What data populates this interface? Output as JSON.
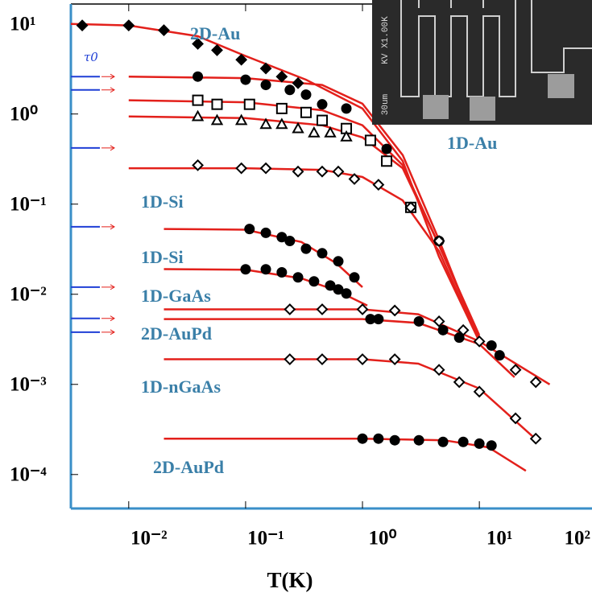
{
  "chart_data": {
    "type": "scatter",
    "x_label": "T(K)",
    "log_x": true,
    "log_y": true,
    "xlim": [
      0.0032,
      92
    ],
    "ylim": [
      4.2e-05,
      16.6
    ],
    "xticks": [
      {
        "value": 0.01,
        "label": "10⁻²"
      },
      {
        "value": 0.1,
        "label": "10⁻¹"
      },
      {
        "value": 1,
        "label": "10⁰"
      },
      {
        "value": 10,
        "label": "10¹"
      },
      {
        "value": 100,
        "label": "10²"
      }
    ],
    "yticks": [
      {
        "value": 10,
        "label": "10¹"
      },
      {
        "value": 1,
        "label": "10⁰"
      },
      {
        "value": 0.1,
        "label": "10⁻¹"
      },
      {
        "value": 0.01,
        "label": "10⁻²"
      },
      {
        "value": 0.001,
        "label": "10⁻³"
      },
      {
        "value": 0.0001,
        "label": "10⁻⁴"
      }
    ],
    "axis_color": "#3a8fc8",
    "fit_color": "#e3201b",
    "series": [
      {
        "marker": "filled-diamond",
        "color": "#000000",
        "x": [
          0.004,
          0.01,
          0.02,
          0.039,
          0.057,
          0.092,
          0.149,
          0.204,
          0.281
        ],
        "values": [
          9.6,
          9.6,
          8.5,
          6.0,
          5.1,
          4.0,
          3.2,
          2.6,
          2.2
        ],
        "fit_x": [
          0.0032,
          0.01,
          0.039,
          0.1,
          0.329,
          1,
          2.21,
          4.52,
          10
        ],
        "fit_values": [
          10,
          9.6,
          7.3,
          4.4,
          2.4,
          1.15,
          0.3,
          0.026,
          0.003
        ]
      },
      {
        "marker": "filled-circle",
        "color": "#000000",
        "x": [
          0.039,
          0.1,
          0.149,
          0.239,
          0.329,
          0.452,
          0.728,
          1.61,
          2.59,
          4.52
        ],
        "values": [
          2.6,
          2.4,
          2.1,
          1.85,
          1.64,
          1.28,
          1.15,
          0.41,
          0.092,
          0.039
        ],
        "fit_x": [
          0.01,
          0.1,
          0.452,
          1,
          2.21,
          4.52,
          10
        ],
        "fit_values": [
          2.6,
          2.5,
          2.1,
          1.3,
          0.35,
          0.04,
          0.003
        ]
      },
      {
        "marker": "open-square",
        "color": "#000000",
        "x": [
          0.039,
          0.057,
          0.108,
          0.204,
          0.329,
          0.452,
          0.728,
          1.17,
          1.61,
          2.59
        ],
        "values": [
          1.42,
          1.28,
          1.28,
          1.15,
          1.04,
          0.85,
          0.69,
          0.51,
          0.3,
          0.092
        ],
        "fit_x": [
          0.01,
          0.1,
          0.452,
          1,
          2.21,
          4.52,
          10
        ],
        "fit_values": [
          1.42,
          1.35,
          1.1,
          0.75,
          0.27,
          0.035,
          0.0033
        ]
      },
      {
        "marker": "open-triangle",
        "color": "#000000",
        "x": [
          0.039,
          0.057,
          0.092,
          0.149,
          0.204,
          0.281,
          0.385,
          0.53,
          0.728
        ],
        "values": [
          0.94,
          0.85,
          0.85,
          0.77,
          0.77,
          0.69,
          0.62,
          0.62,
          0.56
        ],
        "fit_x": [
          0.01,
          0.1,
          0.452,
          1,
          2.21,
          4.52,
          10
        ],
        "fit_values": [
          0.94,
          0.9,
          0.75,
          0.55,
          0.25,
          0.035,
          0.0035
        ]
      },
      {
        "marker": "open-diamond",
        "color": "#000000",
        "x": [
          0.039,
          0.092,
          0.149,
          0.281,
          0.452,
          0.621,
          0.853,
          1.37,
          2.59,
          4.52
        ],
        "values": [
          0.27,
          0.25,
          0.25,
          0.23,
          0.23,
          0.23,
          0.19,
          0.164,
          0.092,
          0.039
        ],
        "fit_x": [
          0.01,
          0.1,
          0.452,
          1,
          2.21,
          4.52,
          10
        ],
        "fit_values": [
          0.25,
          0.25,
          0.24,
          0.2,
          0.11,
          0.03,
          0.003
        ]
      },
      {
        "marker": "filled-circle",
        "color": "#000000",
        "x": [
          0.108,
          0.149,
          0.204,
          0.239,
          0.329,
          0.452,
          0.621,
          0.853
        ],
        "values": [
          0.053,
          0.048,
          0.043,
          0.039,
          0.032,
          0.0285,
          0.0232,
          0.0154
        ],
        "fit_x": [
          0.02,
          0.1,
          0.3,
          0.6,
          1
        ],
        "fit_values": [
          0.053,
          0.052,
          0.038,
          0.022,
          0.012
        ]
      },
      {
        "marker": "filled-circle",
        "color": "#000000",
        "x": [
          0.1,
          0.149,
          0.204,
          0.281,
          0.385,
          0.53,
          0.621,
          0.728
        ],
        "values": [
          0.0189,
          0.0189,
          0.0175,
          0.0154,
          0.0139,
          0.0125,
          0.0113,
          0.0102
        ],
        "fit_x": [
          0.02,
          0.1,
          0.3,
          0.6,
          1.1
        ],
        "fit_values": [
          0.019,
          0.0187,
          0.015,
          0.011,
          0.0075
        ]
      },
      {
        "marker": "open-diamond",
        "color": "#000000",
        "x": [
          0.239,
          0.452,
          1,
          1.89,
          4.52,
          7.28,
          10,
          20.4,
          30.4
        ],
        "values": [
          0.0068,
          0.0068,
          0.0068,
          0.0066,
          0.005,
          0.004,
          0.003,
          0.00145,
          0.00106
        ],
        "fit_x": [
          0.02,
          1,
          3,
          10,
          40
        ],
        "fit_values": [
          0.0068,
          0.0068,
          0.006,
          0.003,
          0.001
        ]
      },
      {
        "marker": "filled-circle",
        "color": "#000000",
        "x": [
          1.17,
          1.37,
          3.04,
          4.89,
          6.73,
          12.7,
          14.9
        ],
        "values": [
          0.0053,
          0.0053,
          0.005,
          0.004,
          0.0033,
          0.0027,
          0.0021
        ],
        "fit_x": [
          0.02,
          1,
          3,
          10,
          20
        ],
        "fit_values": [
          0.0053,
          0.0053,
          0.0048,
          0.0028,
          0.0012
        ]
      },
      {
        "marker": "open-diamond",
        "color": "#000000",
        "x": [
          0.239,
          0.452,
          1,
          1.89,
          4.52,
          6.73,
          10,
          20.4,
          30.4
        ],
        "values": [
          0.0019,
          0.0019,
          0.0019,
          0.0019,
          0.00145,
          0.00106,
          0.00083,
          0.00042,
          0.00025
        ],
        "fit_x": [
          0.02,
          1,
          3,
          10,
          30
        ],
        "fit_values": [
          0.0019,
          0.0019,
          0.0017,
          0.0009,
          0.00025
        ]
      },
      {
        "marker": "filled-circle",
        "color": "#000000",
        "x": [
          1,
          1.37,
          1.89,
          3.04,
          4.89,
          7.28,
          10,
          12.7
        ],
        "values": [
          0.00025,
          0.00025,
          0.00024,
          0.00024,
          0.00023,
          0.00023,
          0.00022,
          0.00021
        ],
        "fit_x": [
          0.02,
          1,
          5,
          12,
          25
        ],
        "fit_values": [
          0.00025,
          0.00025,
          0.00024,
          0.0002,
          0.00011
        ]
      }
    ],
    "tau0_label": "τ0",
    "tau0_color": "#1f3fd6",
    "tau0_levels": [
      2.6,
      1.85,
      0.42,
      0.056,
      0.012,
      0.0054,
      0.0038
    ],
    "annotation_color": "#3a7fa8",
    "annotations": [
      "2D-Au",
      "1D-Au",
      "1D-Si",
      "1D-Si",
      "1D-GaAs",
      "2D-AuPd",
      "1D-nGaAs",
      "2D-AuPd"
    ],
    "inset_labels": [
      "KV X1.00K",
      "30um"
    ]
  }
}
